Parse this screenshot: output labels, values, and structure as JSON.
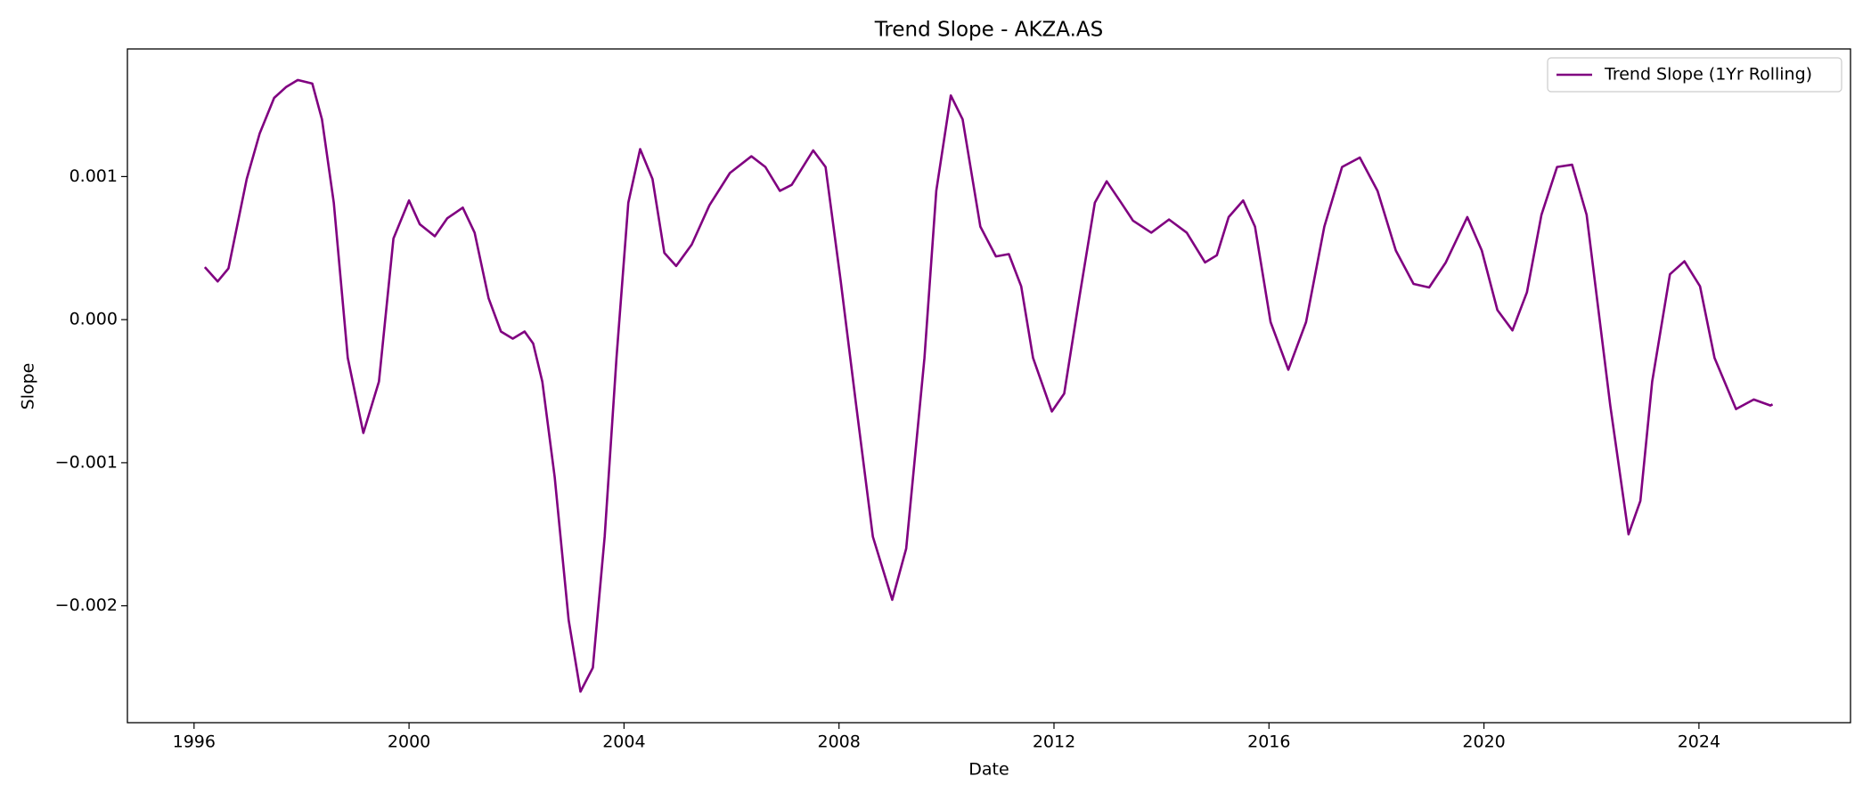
{
  "chart_data": {
    "type": "line",
    "title": "Trend Slope - AKZA.AS",
    "xlabel": "Date",
    "ylabel": "Slope",
    "legend": "upper right",
    "grid": false,
    "xlim": [
      1994.76,
      2026.82
    ],
    "xticks": [
      1996,
      2000,
      2004,
      2008,
      2012,
      2016,
      2020,
      2024
    ],
    "ylim": [
      -0.002817,
      0.001892
    ],
    "yticks": [
      {
        "value": -0.002,
        "label": "−0.002"
      },
      {
        "value": -0.001,
        "label": "−0.001"
      },
      {
        "value": 0,
        "label": "0.000"
      },
      0.001
    ],
    "x": [
      1996.2,
      1996.44,
      1996.64,
      1996.98,
      1997.22,
      1997.49,
      1997.71,
      1997.93,
      1998.2,
      1998.38,
      1998.6,
      1998.86,
      1999.15,
      1999.44,
      1999.71,
      2000.0,
      2000.2,
      2000.48,
      2000.71,
      2001.0,
      2001.22,
      2001.48,
      2001.71,
      2001.93,
      2002.15,
      2002.31,
      2002.48,
      2002.71,
      2002.97,
      2003.19,
      2003.42,
      2003.64,
      2003.86,
      2004.08,
      2004.3,
      2004.53,
      2004.75,
      2004.97,
      2005.26,
      2005.59,
      2005.97,
      2006.37,
      2006.63,
      2006.9,
      2007.12,
      2007.52,
      2007.75,
      2008.03,
      2008.32,
      2008.63,
      2008.99,
      2009.25,
      2009.59,
      2009.81,
      2010.08,
      2010.3,
      2010.63,
      2010.92,
      2011.16,
      2011.39,
      2011.61,
      2011.96,
      2012.19,
      2012.47,
      2012.76,
      2012.98,
      2013.25,
      2013.47,
      2013.81,
      2014.14,
      2014.47,
      2014.81,
      2015.03,
      2015.25,
      2015.52,
      2015.74,
      2016.03,
      2016.36,
      2016.69,
      2017.03,
      2017.36,
      2017.69,
      2018.02,
      2018.36,
      2018.69,
      2018.98,
      2019.29,
      2019.69,
      2019.96,
      2020.25,
      2020.53,
      2020.8,
      2021.07,
      2021.36,
      2021.64,
      2021.91,
      2022.13,
      2022.35,
      2022.69,
      2022.91,
      2023.13,
      2023.46,
      2023.73,
      2024.02,
      2024.29,
      2024.69,
      2025.02,
      2025.33,
      2025.37
    ],
    "series": [
      {
        "name": "Trend Slope (1Yr Rolling)",
        "color": "#800080",
        "values": [
          0.000367,
          0.000267,
          0.000358,
          0.000983,
          0.0013,
          0.00155,
          0.001625,
          0.001675,
          0.00165,
          0.0014,
          0.000817,
          -0.000267,
          -0.000792,
          -0.000433,
          0.000567,
          0.000833,
          0.000667,
          0.000583,
          0.000708,
          0.000783,
          0.000608,
          0.00015,
          -8.3e-05,
          -0.000133,
          -8.3e-05,
          -0.000167,
          -0.000433,
          -0.0011,
          -0.0021,
          -0.0026,
          -0.002433,
          -0.001517,
          -0.000267,
          0.000817,
          0.001192,
          0.000983,
          0.000467,
          0.000375,
          0.000525,
          0.0008,
          0.001025,
          0.001142,
          0.001067,
          0.0009,
          0.000942,
          0.001183,
          0.001067,
          0.000275,
          -0.0006,
          -0.001517,
          -0.001958,
          -0.0016,
          -0.000267,
          0.0009,
          0.001567,
          0.0014,
          0.00065,
          0.000442,
          0.000458,
          0.000233,
          -0.000267,
          -0.000642,
          -0.000517,
          0.00015,
          0.000817,
          0.000967,
          0.000817,
          0.000692,
          0.000608,
          0.0007,
          0.000608,
          0.0004,
          0.00045,
          0.000717,
          0.000833,
          0.00065,
          -1.7e-05,
          -0.00035,
          -1.7e-05,
          0.00065,
          0.001067,
          0.001133,
          0.0009,
          0.000483,
          0.00025,
          0.000225,
          0.0004,
          0.000717,
          0.000483,
          6.7e-05,
          -7.5e-05,
          0.000192,
          0.000733,
          0.001067,
          0.001083,
          0.000733,
          6.7e-05,
          -0.0006,
          -0.0015,
          -0.001267,
          -0.000433,
          0.000317,
          0.000408,
          0.000233,
          -0.000267,
          -0.000625,
          -0.000558,
          -0.0006,
          -0.000592
        ]
      }
    ]
  }
}
